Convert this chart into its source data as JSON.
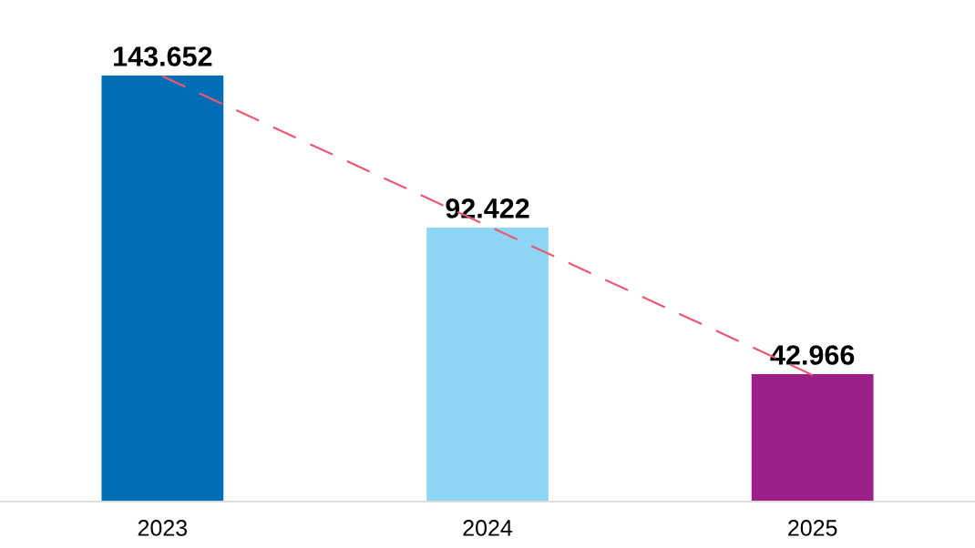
{
  "chart_data": {
    "type": "bar",
    "categories": [
      "2023",
      "2024",
      "2025"
    ],
    "series": [
      {
        "colors": [
          "#006eb6",
          "#8ed6f6",
          "#9d1f8a"
        ],
        "values": [
          143.652,
          92.422,
          42.966
        ],
        "value_labels": [
          "143.652",
          "92.422",
          "42.966"
        ]
      },
      {
        "type": "line",
        "values": [
          143.4,
          93.0,
          42.7
        ],
        "color": "#ea5a72",
        "line_style": "dashed"
      }
    ],
    "tick_labels": "x",
    "grid": false
  }
}
